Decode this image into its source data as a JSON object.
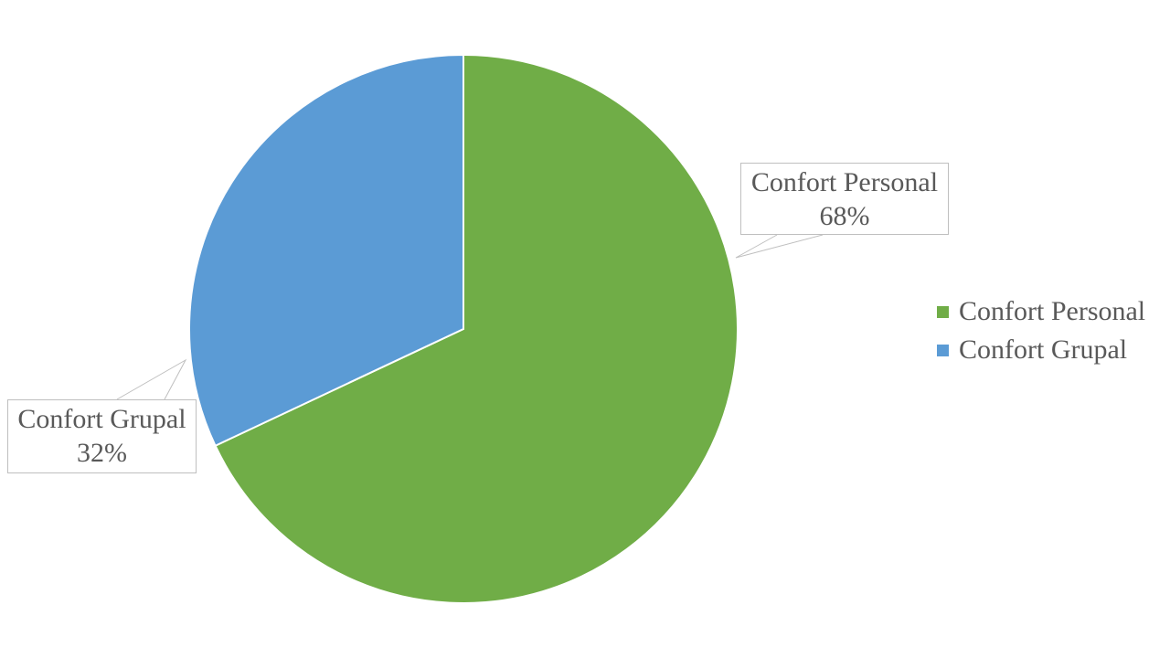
{
  "chart_data": {
    "type": "pie",
    "categories": [
      "Confort Personal",
      "Confort Grupal"
    ],
    "values": [
      68,
      32
    ],
    "data_labels": [
      {
        "category": "Confort Personal",
        "percent": "68%"
      },
      {
        "category": "Confort Grupal",
        "percent": "32%"
      }
    ],
    "colors": [
      "#70AD47",
      "#5B9BD5"
    ],
    "title": "",
    "legend": {
      "placement": "right",
      "entries": [
        "Confort Personal",
        "Confort Grupal"
      ]
    }
  }
}
